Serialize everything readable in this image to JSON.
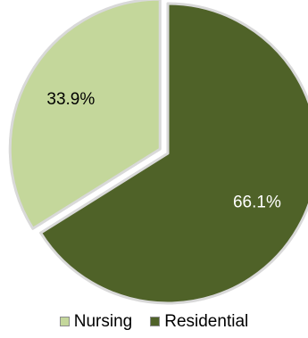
{
  "chart_data": {
    "type": "pie",
    "title": "",
    "categories": [
      "Nursing",
      "Residential"
    ],
    "values": [
      33.9,
      66.1
    ],
    "value_labels": [
      "33.9%",
      "66.1%"
    ],
    "colors": [
      "#c4d79b",
      "#4f6228"
    ],
    "exploded": [
      "Nursing"
    ],
    "legend_position": "bottom",
    "slice_border_color": "#d9d9d9",
    "label_colors": [
      "#000000",
      "#ffffff"
    ]
  }
}
